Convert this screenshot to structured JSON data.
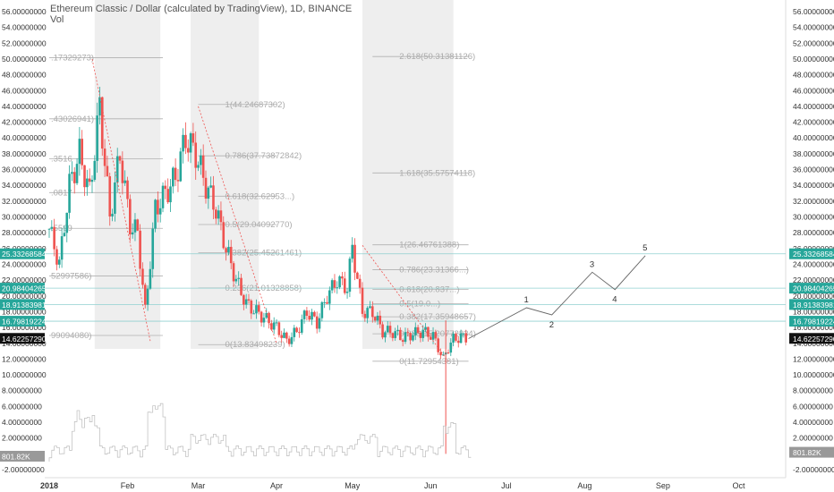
{
  "header": {
    "title": "Ethereum Classic / Dollar (calculated by TradingView), 1D, BINANCE",
    "subtitle": "Vol"
  },
  "chart_data": {
    "type": "line",
    "symbol": "ETCUSD",
    "interval": "1D",
    "exchange": "BINANCE",
    "grid": false,
    "price_axis": {
      "min": -2.0,
      "max": 56.0,
      "ticks": [
        "56.00000000",
        "54.00000000",
        "52.00000000",
        "50.00000000",
        "48.00000000",
        "46.00000000",
        "44.00000000",
        "42.00000000",
        "40.00000000",
        "38.00000000",
        "36.00000000",
        "34.00000000",
        "32.00000000",
        "30.00000000",
        "28.00000000",
        "26.00000000",
        "24.00000000",
        "22.00000000",
        "20.00000000",
        "18.00000000",
        "16.00000000",
        "14.00000000",
        "12.00000000",
        "10.00000000",
        "8.00000000",
        "6.00000000",
        "4.00000000",
        "2.00000000",
        "0.00000000",
        "-2.00000000"
      ],
      "tick_values": [
        56,
        54,
        52,
        50,
        48,
        46,
        44,
        42,
        40,
        38,
        36,
        34,
        32,
        30,
        28,
        26,
        24,
        22,
        20,
        18,
        16,
        14,
        12,
        10,
        8,
        6,
        4,
        2,
        0,
        -2
      ]
    },
    "time_axis": {
      "labels": [
        "2018",
        "Feb",
        "Mar",
        "Apr",
        "May",
        "Jun",
        "Jul",
        "Aug",
        "Sep",
        "Oct"
      ],
      "day_index": [
        0,
        31,
        59,
        90,
        120,
        151,
        181,
        212,
        243,
        273
      ]
    },
    "price_path": {
      "day": [
        0,
        4,
        8,
        12,
        16,
        20,
        24,
        28,
        32,
        35,
        38,
        42,
        46,
        50,
        54,
        58,
        62,
        66,
        70,
        74,
        78,
        82,
        86,
        90,
        94,
        98,
        102,
        106,
        110,
        114,
        118,
        120,
        124,
        128,
        132,
        136,
        140,
        144,
        148,
        152,
        156,
        158,
        160,
        163,
        166
      ],
      "close": [
        28.5,
        24,
        34,
        38,
        33,
        44,
        30,
        38,
        29,
        28,
        18,
        31,
        33,
        35,
        40,
        38,
        34,
        31,
        26,
        22,
        19,
        18,
        17,
        16,
        14.3,
        15.5,
        18,
        16.6,
        20,
        22,
        21,
        26.2,
        18,
        18,
        15.5,
        15.4,
        14.7,
        15.2,
        15.5,
        14.9,
        12,
        13.5,
        14.5,
        14.8,
        14.62
      ]
    },
    "volume_label": "801.82K",
    "horizontal_levels": [
      {
        "value": 25.33268584,
        "label": "25.33268584"
      },
      {
        "value": 20.98404265,
        "label": "20.98404265"
      },
      {
        "value": 18.91383981,
        "label": "18.91383981"
      },
      {
        "value": 16.79819224,
        "label": "16.79819224"
      }
    ],
    "last_price": {
      "value": 14.6225729,
      "label": "14.62257290"
    },
    "shaded_ranges_days": [
      [
        18,
        44
      ],
      [
        56,
        83
      ],
      [
        124,
        160
      ]
    ],
    "fib_sets": [
      {
        "labels": [
          ".17329273)",
          ".43026941)",
          ".3516",
          ".0817",
          ".5599",
          "52997586)",
          "99094080)"
        ],
        "prices": [
          50.17329273,
          42.43026941,
          37.3516,
          33.0817,
          28.5599,
          22.52997586,
          14.9909408
        ],
        "left_day": 0,
        "right_day": 45
      },
      {
        "labels": [
          "1(44.24687302)",
          "0.786(37.73872842)",
          "0.618(32.62953...)",
          "0.5(29.04092770)",
          "0.382(25.45261461)",
          "0.236(21.01328858)",
          "0(13.83498239)"
        ],
        "prices": [
          44.24687302,
          37.73872842,
          32.62953,
          29.0409277,
          25.45261461,
          21.01328858,
          13.83498239
        ],
        "left_day": 59,
        "right_day": 90
      },
      {
        "labels": [
          "2.618(50.31381126)",
          "1.618(35.57574118)",
          "1(26.46761388)",
          "0.786(23.31366...)",
          "0.618(20.837...)",
          "0.5(19.0...)",
          "0.382(17.35948657)",
          "0.236(15.20772834)",
          "0(11.72954381)"
        ],
        "prices": [
          50.31381126,
          35.57574118,
          26.46761388,
          23.31366,
          20.837,
          19.0,
          17.35948657,
          15.20772834,
          11.72954381
        ],
        "left_day": 128,
        "right_day": 166
      }
    ],
    "wave_projection": {
      "labels": [
        "1",
        "2",
        "3",
        "4",
        "5"
      ],
      "days": [
        189,
        199,
        215,
        224,
        236
      ],
      "prices": [
        18.5,
        17.6,
        23.0,
        20.8,
        25.1
      ]
    }
  }
}
